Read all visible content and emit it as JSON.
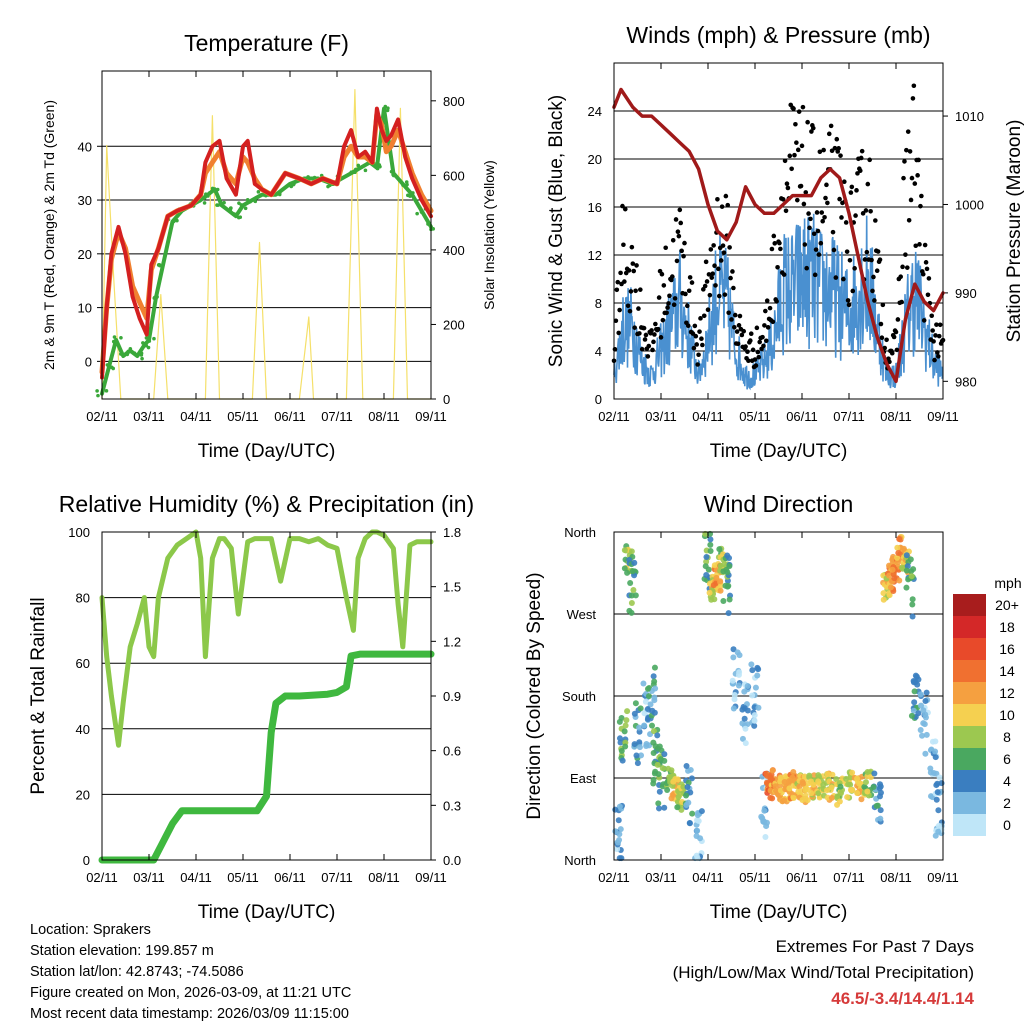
{
  "x_ticks": [
    "02/11",
    "03/11",
    "04/11",
    "05/11",
    "06/11",
    "07/11",
    "08/11",
    "09/11"
  ],
  "x_label": "Time (Day/UTC)",
  "colors": {
    "red": "#d42020",
    "orange": "#f08030",
    "green": "#3aa83a",
    "yellow": "#f5e06a",
    "blue": "#4a90d0",
    "black": "#000000",
    "maroon": "#a01a1a",
    "rh": "#8cc84a",
    "precip": "#3fb83f"
  },
  "info": {
    "location": "Location: Sprakers",
    "elevation": "Station elevation: 199.857 m",
    "latlon": "Station lat/lon: 42.8743; -74.5086",
    "created": "Figure created on Mon, 2026-03-09, at 11:21 UTC",
    "recent": "Most recent data timestamp: 2026/03/09 11:15:00"
  },
  "extremes": {
    "title": "Extremes For Past 7 Days",
    "subtitle": "(High/Low/Max Wind/Total Precipitation)",
    "values": "46.5/-3.4/14.4/1.14"
  },
  "chart_data": [
    {
      "type": "line",
      "title": "Temperature (F)",
      "xlabel": "Time (Day/UTC)",
      "ylabel": "2m & 9m T (Red, Orange) & 2m Td (Green)",
      "ylabel_right": "Solar Insolation (Yellow)",
      "xlim": [
        0,
        7
      ],
      "ylim": [
        -7,
        54
      ],
      "yticks": [
        0,
        10,
        20,
        30,
        40
      ],
      "ylim_right": [
        0,
        880
      ],
      "yticks_right": [
        0,
        200,
        400,
        600,
        800
      ],
      "series": [
        {
          "name": "2m T",
          "color": "red",
          "x": [
            0,
            0.1,
            0.2,
            0.35,
            0.5,
            0.65,
            0.8,
            0.95,
            1.05,
            1.2,
            1.4,
            1.6,
            1.9,
            2.1,
            2.2,
            2.35,
            2.5,
            2.65,
            2.85,
            3.0,
            3.1,
            3.25,
            3.4,
            3.6,
            3.9,
            4.2,
            4.45,
            4.7,
            5.0,
            5.15,
            5.3,
            5.45,
            5.6,
            5.75,
            5.85,
            5.95,
            6.05,
            6.15,
            6.3,
            6.45,
            6.6,
            6.8,
            7.0
          ],
          "y": [
            -3,
            10,
            20,
            25,
            20,
            12,
            8,
            5,
            18,
            21,
            27,
            28,
            29,
            31,
            37,
            40,
            41,
            34,
            31,
            40,
            41,
            33,
            32,
            31,
            35,
            34,
            33,
            34,
            33,
            40,
            43,
            38,
            39,
            37,
            47,
            43,
            41,
            42,
            45,
            38,
            34,
            30,
            27
          ]
        },
        {
          "name": "9m T",
          "color": "orange",
          "x": [
            0,
            0.1,
            0.2,
            0.35,
            0.5,
            0.65,
            0.8,
            0.95,
            1.05,
            1.2,
            1.4,
            1.6,
            1.9,
            2.1,
            2.2,
            2.35,
            2.5,
            2.65,
            2.85,
            3.0,
            3.1,
            3.25,
            3.4,
            3.6,
            3.9,
            4.2,
            4.45,
            4.7,
            5.0,
            5.15,
            5.3,
            5.45,
            5.6,
            5.75,
            5.85,
            5.95,
            6.05,
            6.15,
            6.3,
            6.45,
            6.6,
            6.8,
            7.0
          ],
          "y": [
            -2,
            10,
            19,
            24,
            21,
            14,
            11,
            8,
            17,
            21,
            27,
            28,
            29,
            31,
            35,
            37,
            39,
            35,
            33,
            38,
            37,
            34,
            32,
            31,
            35,
            34,
            33,
            34,
            33,
            38,
            40,
            38,
            38,
            37,
            46,
            44,
            39,
            40,
            43,
            39,
            35,
            31,
            28
          ]
        },
        {
          "name": "2m Td",
          "color": "green",
          "x": [
            0,
            0.15,
            0.3,
            0.45,
            0.6,
            0.75,
            0.9,
            1.0,
            1.15,
            1.3,
            1.5,
            1.7,
            1.9,
            2.1,
            2.25,
            2.4,
            2.55,
            2.7,
            2.85,
            3.0,
            3.2,
            3.4,
            3.7,
            4.0,
            4.3,
            4.6,
            4.9,
            5.1,
            5.3,
            5.5,
            5.7,
            5.85,
            6.0,
            6.2,
            6.4,
            6.6,
            6.8,
            7.0
          ],
          "y": [
            -6,
            -1,
            4,
            1,
            2,
            1,
            3,
            4,
            12,
            18,
            26,
            28,
            29,
            30,
            31,
            32,
            29,
            28,
            27,
            29,
            30,
            31,
            31,
            33,
            34,
            34,
            33,
            34,
            35,
            36,
            37,
            36,
            47,
            35,
            33,
            31,
            28,
            25
          ]
        },
        {
          "name": "Solar Insolation",
          "color": "yellow",
          "axis": "right",
          "x": [
            0,
            0.1,
            0.25,
            0.4,
            1.1,
            1.25,
            1.4,
            2.2,
            2.35,
            2.5,
            3.2,
            3.35,
            3.5,
            4.2,
            4.4,
            4.5,
            5.2,
            5.38,
            5.55,
            6.2,
            6.35,
            6.5,
            7.0
          ],
          "y": [
            0,
            680,
            320,
            0,
            0,
            280,
            0,
            0,
            760,
            0,
            0,
            420,
            0,
            0,
            220,
            0,
            0,
            830,
            0,
            0,
            780,
            0,
            0
          ]
        }
      ]
    },
    {
      "type": "scatter",
      "title": "Winds (mph) & Pressure (mb)",
      "xlabel": "Time (Day/UTC)",
      "ylabel": "Sonic Wind & Gust (Blue, Black)",
      "ylabel_right": "Station Pressure (Maroon)",
      "xlim": [
        0,
        7
      ],
      "ylim": [
        0,
        28
      ],
      "yticks": [
        0,
        4,
        8,
        12,
        16,
        20,
        24
      ],
      "ylim_right": [
        978,
        1016
      ],
      "yticks_right": [
        980,
        990,
        1000,
        1010
      ],
      "series": [
        {
          "name": "Sonic Wind",
          "color": "blue",
          "x": [
            0,
            0.2,
            0.4,
            0.6,
            0.8,
            1.0,
            1.2,
            1.4,
            1.6,
            1.8,
            2.0,
            2.2,
            2.4,
            2.6,
            2.8,
            3.0,
            3.2,
            3.4,
            3.6,
            3.8,
            4.0,
            4.2,
            4.4,
            4.6,
            4.8,
            5.0,
            5.2,
            5.4,
            5.6,
            5.8,
            6.0,
            6.2,
            6.4,
            6.6,
            6.8,
            7.0
          ],
          "y": [
            2,
            6,
            6,
            3,
            2,
            4,
            6,
            8,
            5,
            2,
            5,
            9,
            8,
            4,
            2,
            2,
            3,
            5,
            9,
            9,
            10,
            10,
            9,
            9,
            8,
            7,
            9,
            10,
            6,
            2,
            2,
            6,
            9,
            6,
            3,
            2
          ]
        },
        {
          "name": "Gust",
          "color": "black",
          "x": [
            0,
            0.2,
            0.4,
            0.6,
            0.8,
            1.0,
            1.2,
            1.4,
            1.6,
            1.8,
            2.0,
            2.2,
            2.4,
            2.6,
            2.8,
            3.0,
            3.2,
            3.4,
            3.6,
            3.8,
            4.0,
            4.2,
            4.4,
            4.6,
            4.8,
            5.0,
            5.2,
            5.4,
            5.6,
            5.8,
            6.0,
            6.2,
            6.4,
            6.6,
            6.8,
            7.0
          ],
          "y": [
            4,
            12,
            10,
            6,
            4,
            8,
            10,
            12,
            8,
            4,
            9,
            13,
            12,
            6,
            4,
            4,
            5,
            10,
            16,
            18,
            17,
            16,
            15,
            16,
            15,
            12,
            14,
            16,
            10,
            4,
            4,
            16,
            19,
            10,
            5,
            4
          ]
        },
        {
          "name": "Station Pressure",
          "color": "maroon",
          "axis": "right",
          "x": [
            0,
            0.15,
            0.4,
            0.6,
            0.8,
            1.0,
            1.2,
            1.4,
            1.6,
            1.8,
            2.0,
            2.2,
            2.4,
            2.6,
            2.8,
            3.0,
            3.2,
            3.4,
            3.6,
            3.8,
            4.0,
            4.2,
            4.4,
            4.6,
            4.8,
            5.0,
            5.2,
            5.4,
            5.6,
            5.8,
            6.0,
            6.2,
            6.4,
            6.6,
            6.8,
            7.0
          ],
          "y": [
            1011,
            1013,
            1011,
            1010,
            1010,
            1009,
            1008,
            1007,
            1006,
            1004,
            1000,
            997,
            996,
            998,
            1002,
            1000,
            999,
            999,
            1000,
            1001,
            1001,
            1001,
            1003,
            1004,
            1003,
            999,
            994,
            989,
            985,
            982,
            980,
            987,
            991,
            989,
            988,
            990
          ]
        }
      ]
    },
    {
      "type": "line",
      "title": "Relative Humidity (%) & Precipitation (in)",
      "xlabel": "Time (Day/UTC)",
      "ylabel": "Percent & Total Rainfall",
      "xlim": [
        0,
        7
      ],
      "ylim": [
        0,
        100
      ],
      "yticks": [
        0,
        20,
        40,
        60,
        80,
        100
      ],
      "ylim_right": [
        0,
        1.8
      ],
      "yticks_right": [
        "0.0",
        "0.3",
        "0.6",
        "0.9",
        "1.2",
        "1.5",
        "1.8"
      ],
      "series": [
        {
          "name": "Relative Humidity",
          "color": "rh",
          "x": [
            0,
            0.1,
            0.2,
            0.35,
            0.45,
            0.6,
            0.75,
            0.9,
            1.0,
            1.1,
            1.2,
            1.4,
            1.6,
            1.8,
            2.0,
            2.1,
            2.2,
            2.35,
            2.5,
            2.6,
            2.75,
            2.9,
            3.1,
            3.25,
            3.4,
            3.6,
            3.8,
            4.0,
            4.2,
            4.4,
            4.6,
            4.8,
            5.0,
            5.2,
            5.35,
            5.45,
            5.6,
            5.75,
            5.85,
            6.0,
            6.2,
            6.3,
            6.4,
            6.55,
            6.7,
            6.85,
            7.0
          ],
          "y": [
            80,
            62,
            50,
            35,
            48,
            65,
            72,
            80,
            65,
            62,
            80,
            92,
            96,
            98,
            100,
            92,
            62,
            92,
            98,
            98,
            95,
            75,
            97,
            98,
            98,
            98,
            85,
            98,
            98,
            97,
            98,
            96,
            95,
            80,
            70,
            92,
            98,
            100,
            100,
            99,
            95,
            78,
            65,
            96,
            97,
            97,
            97
          ]
        },
        {
          "name": "Total Precipitation",
          "color": "precip",
          "axis": "right",
          "x": [
            0,
            0.9,
            1.1,
            1.3,
            1.5,
            1.7,
            2.0,
            2.5,
            3.0,
            3.3,
            3.5,
            3.6,
            3.7,
            3.9,
            4.2,
            4.8,
            5.0,
            5.2,
            5.3,
            5.5,
            6.0,
            6.5,
            7.0
          ],
          "y": [
            0,
            0,
            0,
            0.1,
            0.2,
            0.27,
            0.27,
            0.27,
            0.27,
            0.27,
            0.35,
            0.7,
            0.86,
            0.9,
            0.9,
            0.91,
            0.92,
            0.95,
            1.12,
            1.13,
            1.13,
            1.13,
            1.13
          ]
        }
      ]
    },
    {
      "type": "scatter",
      "title": "Wind Direction",
      "xlabel": "Time (Day/UTC)",
      "ylabel": "Direction (Colored By Speed)",
      "xlim": [
        0,
        7
      ],
      "ylim": [
        0,
        360
      ],
      "yticks": [
        "North",
        "East",
        "South",
        "West",
        "North"
      ],
      "colorbar_label": "mph",
      "colorbar_ticks": [
        "20+",
        "18",
        "16",
        "14",
        "12",
        "10",
        "8",
        "6",
        "4",
        "2",
        "0"
      ],
      "colorbar_colors": [
        "#a81d1d",
        "#d42828",
        "#e84a2a",
        "#f07030",
        "#f5a040",
        "#f5d050",
        "#9cc850",
        "#4aa860",
        "#3a7ec0",
        "#7ab8e0",
        "#bfe6f8"
      ],
      "series": [
        {
          "name": "Direction",
          "x": [
            0.1,
            0.2,
            0.3,
            0.4,
            0.5,
            0.7,
            0.8,
            0.9,
            1.0,
            1.2,
            1.3,
            1.4,
            1.6,
            1.8,
            2.0,
            2.1,
            2.2,
            2.3,
            2.4,
            2.6,
            2.8,
            3.0,
            3.2,
            3.3,
            3.4,
            3.5,
            3.6,
            3.7,
            3.8,
            3.9,
            4.0,
            4.2,
            4.4,
            4.6,
            4.8,
            5.0,
            5.2,
            5.4,
            5.6,
            5.8,
            5.9,
            6.0,
            6.1,
            6.2,
            6.3,
            6.4,
            6.6,
            6.8,
            6.9
          ],
          "y": [
            30,
            140,
            330,
            300,
            140,
            160,
            180,
            110,
            90,
            90,
            80,
            70,
            70,
            20,
            330,
            300,
            310,
            330,
            300,
            200,
            160,
            180,
            60,
            80,
            85,
            80,
            78,
            80,
            82,
            80,
            78,
            80,
            82,
            80,
            75,
            82,
            80,
            85,
            60,
            300,
            310,
            320,
            340,
            330,
            300,
            180,
            150,
            100,
            60
          ],
          "speed": [
            2,
            6,
            8,
            6,
            4,
            2,
            4,
            6,
            6,
            8,
            10,
            8,
            4,
            2,
            6,
            10,
            12,
            8,
            6,
            2,
            2,
            2,
            2,
            14,
            12,
            12,
            11,
            11,
            12,
            10,
            11,
            10,
            9,
            10,
            8,
            9,
            11,
            8,
            4,
            10,
            12,
            13,
            12,
            10,
            6,
            4,
            2,
            2,
            2
          ]
        }
      ]
    }
  ]
}
